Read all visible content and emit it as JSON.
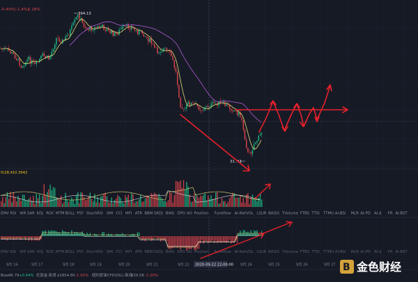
{
  "header": {
    "change_left": "-0.44%(-1.4%)",
    "change_right": "1.18%"
  },
  "price_annotations": {
    "high": "394.13",
    "low": "31..41"
  },
  "volume_label": "0)28,410.3942",
  "indicator_tabs_top": [
    "EMV",
    "RSI",
    "WR",
    "SAR",
    "KDJ",
    "ROC",
    "MTM",
    "BOLL",
    "PSY",
    "StochRSI",
    "SMI",
    "CCI",
    "MFI",
    "ATR",
    "BBW",
    "SKDJ",
    "BIAS",
    "DPO",
    "AO",
    "Position",
    "Fundflow",
    "AI-NetVOL",
    "LSUR",
    "BASIS",
    "TVolume",
    "FTBS",
    "TTSI",
    "TTMU",
    "AI-BSI",
    "MLR",
    "AI-PD",
    "AI-IJ",
    "FR",
    "AI-BST"
  ],
  "indicator_tabs_bottom": [
    "EMV",
    "RSI",
    "WR",
    "SAR",
    "KDJ",
    "ROC",
    "MTM",
    "BOLL",
    "PSY",
    "StochRSI",
    "SMI",
    "CCI",
    "MFI",
    "ATR",
    "BBW",
    "SKDJ",
    "BIAS",
    "DPO",
    "AO",
    "Position",
    "Fundflow",
    "AI-NetVOL",
    "LSUR",
    "BASIS",
    "TVolume",
    "FTBS",
    "TTSI",
    "TTMU",
    "AI-BSI",
    "MLR",
    "AI-PD",
    "AI-IJ",
    "FR",
    "AI-BST"
  ],
  "date_labels": [
    "9月 16",
    "9月 17",
    "9月 18",
    "9月 19",
    "9月 20",
    "9月 21",
    "9月 22",
    "9月 24",
    "9月 25",
    "9月 26",
    "9月 27"
  ],
  "crosshair_date": "2020-09-22 22:00:00",
  "footer": {
    "item1_label": "Bias:",
    "item1_value": "46.79",
    "item1_change": "+0.44%",
    "item2_label": "伦敦金·新浪",
    "item2_value": "$1854.80",
    "item2_change": "-1.41%",
    "item3_label": "纽约原油CFD(OIL)·新浪",
    "item3_value": "$39.58",
    "item3_change": "-1.20%"
  },
  "logo": {
    "text": "金色财经"
  },
  "colors": {
    "background": "#161a25",
    "up": "#1fbf88",
    "down": "#e0454c",
    "arrow": "#e8212b",
    "ma_yellow": "#e8dd7a",
    "ma_purple": "#b05bd6"
  }
}
